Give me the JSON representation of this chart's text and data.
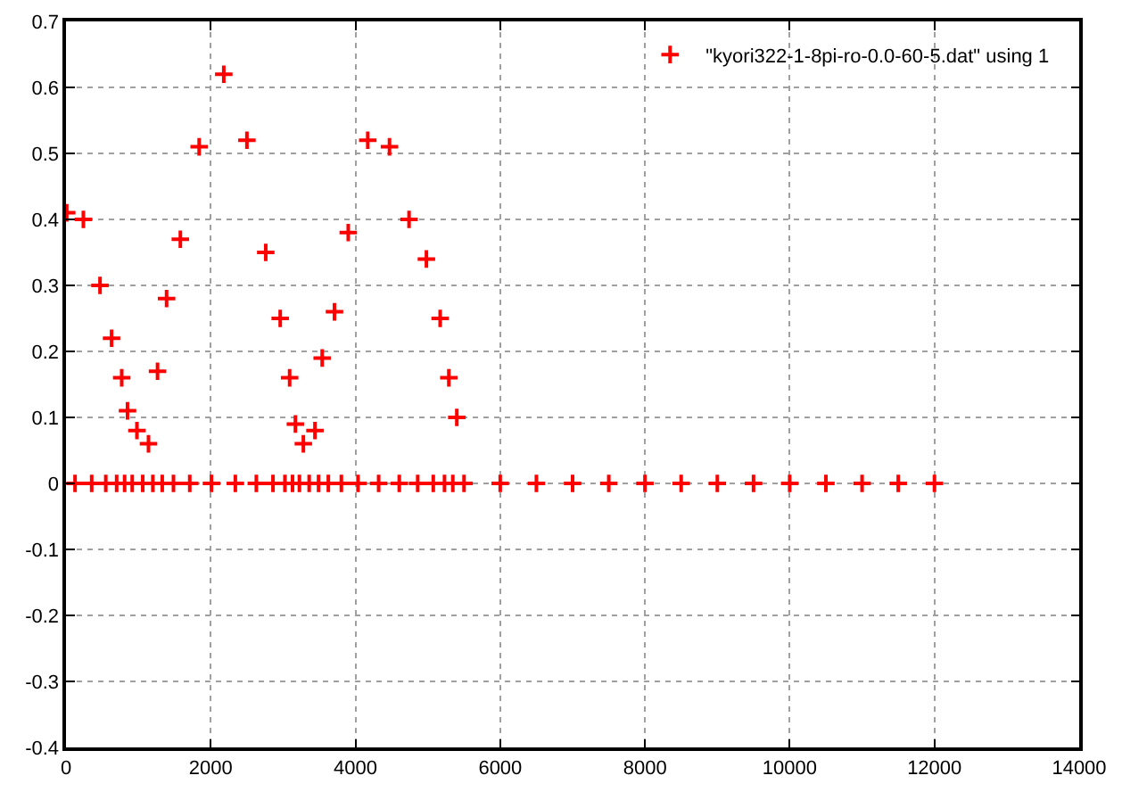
{
  "chart_data": {
    "type": "scatter",
    "x": [
      10,
      125,
      240,
      355,
      470,
      550,
      630,
      700,
      770,
      810,
      850,
      915,
      980,
      1060,
      1140,
      1200,
      1265,
      1330,
      1390,
      1485,
      1580,
      1710,
      1840,
      2010,
      2180,
      2340,
      2500,
      2630,
      2760,
      2860,
      2960,
      3025,
      3090,
      3130,
      3170,
      3225,
      3280,
      3360,
      3440,
      3490,
      3540,
      3625,
      3710,
      3805,
      3900,
      4035,
      4170,
      4320,
      4470,
      4605,
      4740,
      4860,
      4980,
      5075,
      5170,
      5230,
      5290,
      5345,
      5400,
      5500,
      6000,
      6500,
      7000,
      7500,
      8000,
      8500,
      9000,
      9500,
      10000,
      10500,
      11000,
      11500,
      12000
    ],
    "series": [
      {
        "name": "\"kyori322-1-8pi-ro-0.0-60-5.dat\" using 1",
        "color": "#ff0000",
        "values": [
          0.41,
          0,
          0.4,
          0,
          0.3,
          0,
          0.22,
          0,
          0.16,
          0,
          0.11,
          0,
          0.08,
          0,
          0.06,
          0,
          0.17,
          0,
          0.28,
          0,
          0.37,
          0,
          0.51,
          0,
          0.62,
          0,
          0.52,
          0,
          0.35,
          0,
          0.25,
          0,
          0.16,
          0,
          0.09,
          0,
          0.06,
          0,
          0.08,
          0,
          0.19,
          0,
          0.26,
          0,
          0.38,
          0,
          0.52,
          0,
          0.51,
          0,
          0.4,
          0,
          0.34,
          0,
          0.25,
          0,
          0.16,
          0,
          0.1,
          0,
          0,
          0,
          0,
          0,
          0,
          0,
          0,
          0,
          0,
          0,
          0,
          0,
          0
        ]
      }
    ],
    "xlim": [
      0,
      14000
    ],
    "xticks": [
      0,
      2000,
      4000,
      6000,
      8000,
      10000,
      12000,
      14000
    ],
    "ylim": [
      -0.4,
      0.7
    ],
    "yticks": [
      -0.4,
      -0.3,
      -0.2,
      -0.1,
      0,
      0.1,
      0.2,
      0.3,
      0.4,
      0.5,
      0.6,
      0.7
    ],
    "grid": true,
    "legend": "top right",
    "marker": "cross"
  }
}
